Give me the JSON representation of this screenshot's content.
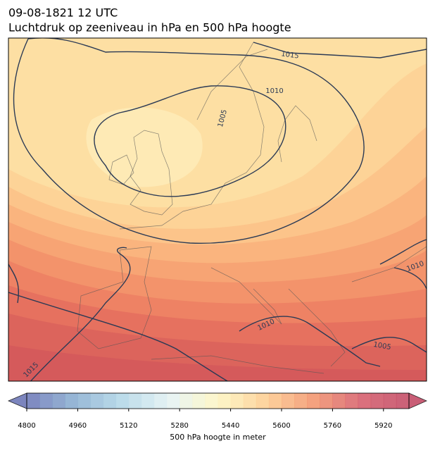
{
  "chart_data": {
    "type": "contour-map",
    "title": "09-08-1821 12 UTC",
    "subtitle": "Luchtdruk op zeeniveau in hPa en 500 hPa hoogte",
    "colorbar": {
      "label": "500 hPa hoogte in meter",
      "lim": [
        4800,
        6000
      ],
      "step": 40,
      "ticks": [
        4800,
        4960,
        5120,
        5280,
        5440,
        5600,
        5760,
        5920
      ],
      "colormap": [
        "#6670b3",
        "#86acd0",
        "#b0d6e6",
        "#e3f2f3",
        "#fdf6c0",
        "#fdcb8c",
        "#f29269",
        "#d45866",
        "#c0435f"
      ],
      "extend": "both"
    },
    "isobar_labels": [
      1015,
      1010,
      1005,
      1010,
      1010,
      1005,
      1015
    ]
  }
}
